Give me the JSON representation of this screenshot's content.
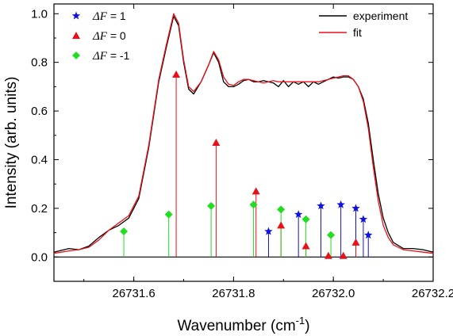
{
  "chart_data": {
    "type": "line",
    "xlabel": "Wavenumber (cm",
    "xlabel_sup": "-1",
    "xlabel_end": ")",
    "ylabel": "Intensity (arb. units)",
    "xlim": [
      26731.44,
      26732.2
    ],
    "ylim": [
      -0.1,
      1.04
    ],
    "x_ticks": [
      26731.6,
      26731.8,
      26732.0,
      26732.2
    ],
    "x_tick_labels": [
      "26731.6",
      "26731.8",
      "26732.0",
      "26732.2"
    ],
    "y_ticks": [
      0.0,
      0.2,
      0.4,
      0.6,
      0.8,
      1.0
    ],
    "y_tick_labels": [
      "0.0",
      "0.2",
      "0.4",
      "0.6",
      "0.8",
      "1.0"
    ],
    "baseline": 0.0,
    "series": [
      {
        "name": "experiment",
        "color": "#000000",
        "x": [
          26731.44,
          26731.47,
          26731.49,
          26731.51,
          26731.53,
          26731.55,
          26731.57,
          26731.59,
          26731.61,
          26731.63,
          26731.65,
          26731.665,
          26731.68,
          26731.69,
          26731.7,
          26731.71,
          26731.72,
          26731.735,
          26731.75,
          26731.76,
          26731.77,
          26731.78,
          26731.79,
          26731.8,
          26731.81,
          26731.82,
          26731.83,
          26731.84,
          26731.85,
          26731.86,
          26731.87,
          26731.88,
          26731.89,
          26731.9,
          26731.91,
          26731.92,
          26731.93,
          26731.94,
          26731.95,
          26731.96,
          26731.97,
          26731.98,
          26731.99,
          26732.0,
          26732.01,
          26732.02,
          26732.03,
          26732.04,
          26732.05,
          26732.06,
          26732.07,
          26732.08,
          26732.09,
          26732.1,
          26732.11,
          26732.12,
          26732.14,
          26732.16,
          26732.18,
          26732.2
        ],
        "y": [
          0.02,
          0.035,
          0.03,
          0.045,
          0.08,
          0.11,
          0.13,
          0.16,
          0.24,
          0.45,
          0.72,
          0.86,
          0.99,
          0.95,
          0.8,
          0.69,
          0.67,
          0.72,
          0.79,
          0.84,
          0.8,
          0.72,
          0.7,
          0.7,
          0.71,
          0.725,
          0.73,
          0.72,
          0.72,
          0.725,
          0.72,
          0.715,
          0.7,
          0.725,
          0.7,
          0.72,
          0.71,
          0.72,
          0.7,
          0.72,
          0.71,
          0.72,
          0.73,
          0.74,
          0.735,
          0.74,
          0.74,
          0.73,
          0.7,
          0.65,
          0.55,
          0.4,
          0.26,
          0.16,
          0.1,
          0.06,
          0.035,
          0.035,
          0.03,
          0.02
        ]
      },
      {
        "name": "fit",
        "color": "#e8101a",
        "x": [
          26731.44,
          26731.47,
          26731.49,
          26731.51,
          26731.53,
          26731.55,
          26731.57,
          26731.59,
          26731.61,
          26731.63,
          26731.65,
          26731.665,
          26731.68,
          26731.69,
          26731.7,
          26731.71,
          26731.72,
          26731.735,
          26731.75,
          26731.76,
          26731.77,
          26731.78,
          26731.79,
          26731.8,
          26731.81,
          26731.82,
          26731.83,
          26731.84,
          26731.85,
          26731.86,
          26731.87,
          26731.88,
          26731.89,
          26731.9,
          26731.91,
          26731.92,
          26731.93,
          26731.94,
          26731.95,
          26731.96,
          26731.97,
          26731.98,
          26731.99,
          26732.0,
          26732.01,
          26732.02,
          26732.03,
          26732.04,
          26732.05,
          26732.06,
          26732.07,
          26732.08,
          26732.09,
          26732.1,
          26732.11,
          26732.12,
          26732.14,
          26732.16,
          26732.18,
          26732.2
        ],
        "y": [
          0.015,
          0.025,
          0.03,
          0.04,
          0.07,
          0.11,
          0.14,
          0.17,
          0.25,
          0.46,
          0.73,
          0.87,
          1.0,
          0.96,
          0.81,
          0.7,
          0.68,
          0.72,
          0.79,
          0.845,
          0.81,
          0.74,
          0.71,
          0.705,
          0.72,
          0.73,
          0.73,
          0.725,
          0.72,
          0.715,
          0.72,
          0.725,
          0.72,
          0.72,
          0.72,
          0.72,
          0.72,
          0.72,
          0.72,
          0.72,
          0.72,
          0.725,
          0.73,
          0.735,
          0.74,
          0.745,
          0.745,
          0.73,
          0.7,
          0.64,
          0.53,
          0.37,
          0.23,
          0.13,
          0.08,
          0.05,
          0.03,
          0.025,
          0.02,
          0.015
        ]
      }
    ],
    "sticks": [
      {
        "name": "ΔF = 1",
        "label_math": "ΔF",
        "label_value": " = 1",
        "color": "#1010e0",
        "marker": "star",
        "x": [
          26731.87,
          26731.93,
          26731.975,
          26732.015,
          26732.045,
          26732.06,
          26732.07
        ],
        "y": [
          0.105,
          0.175,
          0.21,
          0.215,
          0.2,
          0.155,
          0.09
        ]
      },
      {
        "name": "ΔF = 0",
        "label_math": "ΔF",
        "label_value": " = 0",
        "color": "#e8101a",
        "marker": "triangle",
        "x": [
          26731.685,
          26731.765,
          26731.845,
          26731.895,
          26731.945,
          26731.99,
          26732.02,
          26732.045
        ],
        "y": [
          0.75,
          0.47,
          0.27,
          0.13,
          0.045,
          0.005,
          0.005,
          0.06
        ]
      },
      {
        "name": "ΔF = -1",
        "label_math": "ΔF",
        "label_value": " = -1",
        "color": "#22dd22",
        "marker": "diamond",
        "x": [
          26731.58,
          26731.67,
          26731.755,
          26731.84,
          26731.895,
          26731.945,
          26731.995
        ],
        "y": [
          0.105,
          0.175,
          0.21,
          0.215,
          0.195,
          0.155,
          0.09
        ]
      }
    ],
    "legend_left_placement": "top-left",
    "legend_right_placement": "top-right",
    "grid": false
  }
}
